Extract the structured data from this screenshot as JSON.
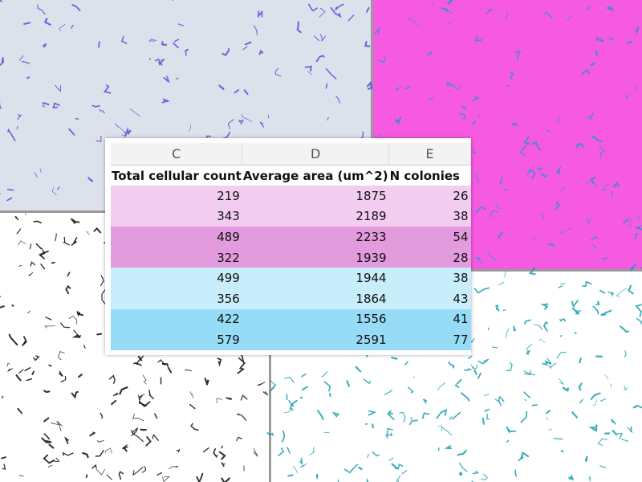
{
  "table": {
    "column_letters": [
      "C",
      "D",
      "E"
    ],
    "headers": [
      "Total cellular count",
      "Average area (um^2)",
      "N colonies"
    ],
    "rows": [
      [
        219,
        1875,
        26
      ],
      [
        343,
        2189,
        38
      ],
      [
        489,
        2233,
        54
      ],
      [
        322,
        1939,
        28
      ],
      [
        499,
        1944,
        38
      ],
      [
        356,
        1864,
        43
      ],
      [
        422,
        1556,
        41
      ],
      [
        579,
        2591,
        77
      ]
    ]
  }
}
